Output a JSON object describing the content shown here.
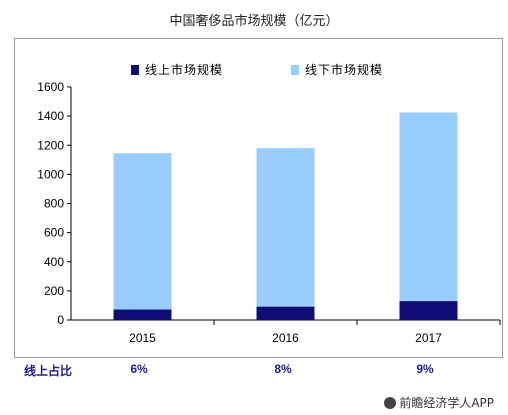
{
  "title": "中国奢侈品市场规模（亿元）",
  "chart_data": {
    "type": "bar",
    "stacked": true,
    "categories": [
      "2015",
      "2016",
      "2017"
    ],
    "series": [
      {
        "name": "线上市场规模",
        "color": "#0d0d73",
        "values": [
          72,
          92,
          130
        ]
      },
      {
        "name": "线下市场规模",
        "color": "#99ccff",
        "values": [
          1073,
          1088,
          1295
        ]
      }
    ],
    "ylim": [
      0,
      1600
    ],
    "yticks": [
      0,
      200,
      400,
      600,
      800,
      1000,
      1200,
      1400,
      1600
    ],
    "xlabel": "",
    "ylabel": "",
    "legend_position": "top",
    "grid": false
  },
  "online_share": {
    "label": "线上占比",
    "values": [
      "6%",
      "8%",
      "9%"
    ]
  },
  "footer": {
    "credit": "前瞻经济学人APP"
  }
}
